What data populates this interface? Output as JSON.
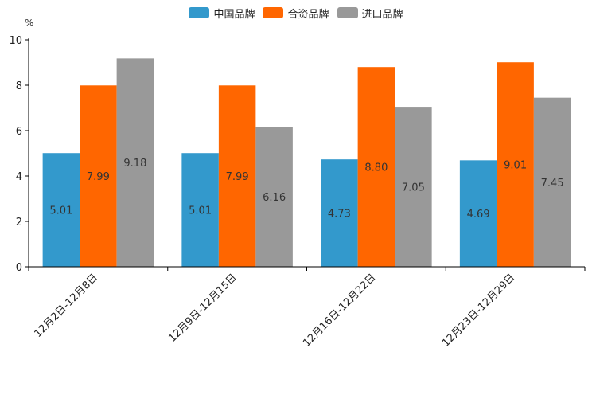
{
  "chart_data": {
    "type": "bar",
    "title": "",
    "unit_label": "%",
    "xlabel": "",
    "ylabel": "%",
    "ylim": [
      0,
      10
    ],
    "yticks": [
      0,
      2,
      4,
      6,
      8,
      10
    ],
    "legend_position": "top-center",
    "categories": [
      "12月2日-12月8日",
      "12月9日-12月15日",
      "12月16日-12月22日",
      "12月23日-12月29日"
    ],
    "series": [
      {
        "name": "中国品牌",
        "color": "#3399CC",
        "values": [
          5.01,
          5.01,
          4.73,
          4.69
        ],
        "labels": [
          "5.01",
          "5.01",
          "4.73",
          "4.69"
        ]
      },
      {
        "name": "合资品牌",
        "color": "#FF6600",
        "values": [
          7.99,
          7.99,
          8.8,
          9.01
        ],
        "labels": [
          "7.99",
          "7.99",
          "8.80",
          "9.01"
        ]
      },
      {
        "name": "进口品牌",
        "color": "#999999",
        "values": [
          9.18,
          6.16,
          7.05,
          7.45
        ],
        "labels": [
          "9.18",
          "6.16",
          "7.05",
          "7.45"
        ]
      }
    ]
  }
}
